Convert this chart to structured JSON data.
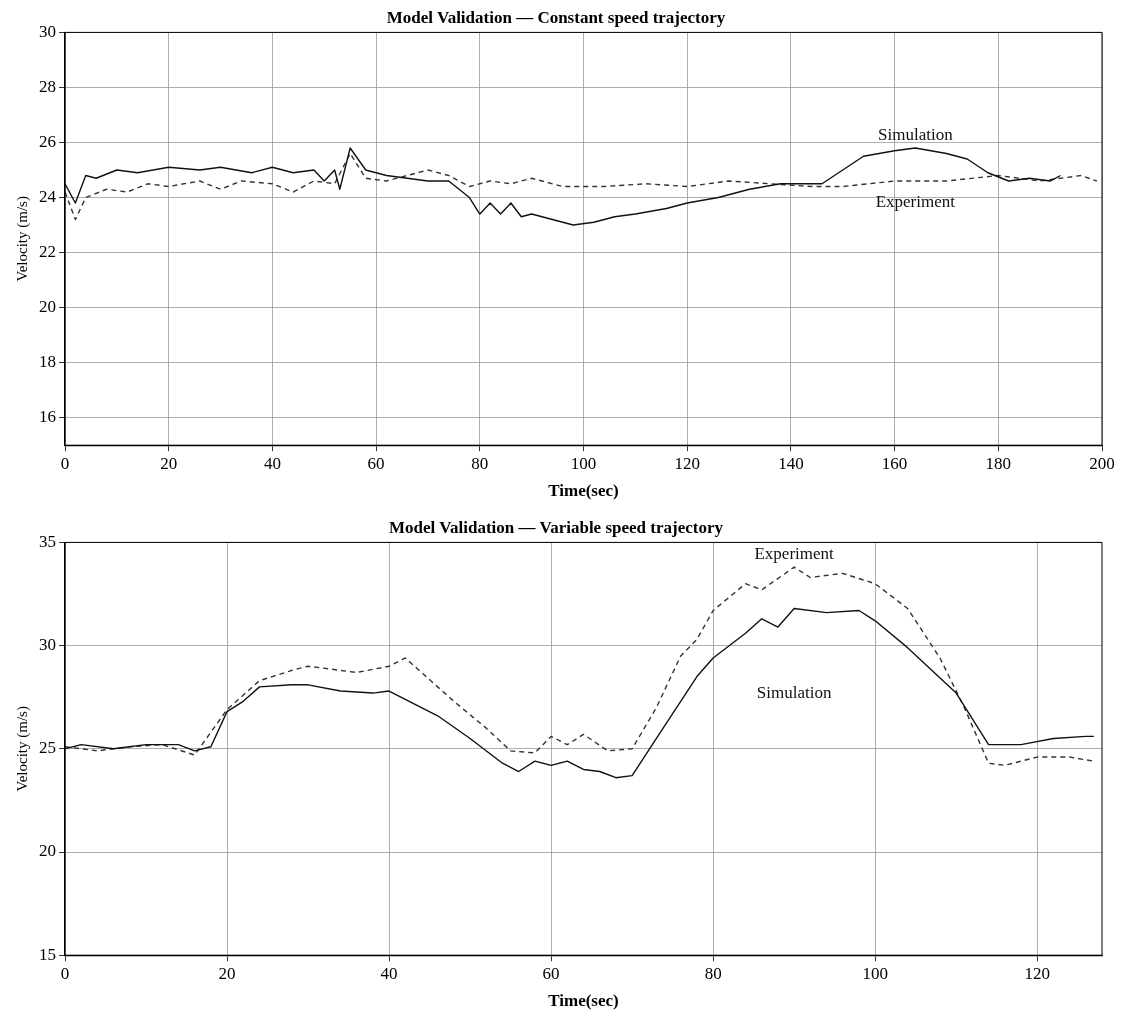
{
  "chart_data": [
    {
      "type": "line",
      "title": "Model Validation — Constant speed trajectory",
      "xlabel": "Time(sec)",
      "ylabel": "Velocity (m/s)",
      "xlim": [
        0,
        200
      ],
      "xticks": [
        0,
        20,
        40,
        60,
        80,
        100,
        120,
        140,
        160,
        180,
        200
      ],
      "ylim": [
        15,
        30
      ],
      "yticks": [
        16,
        18,
        20,
        22,
        24,
        26,
        28,
        30
      ],
      "grid": true,
      "legend": false,
      "marker": "none",
      "series": [
        {
          "name": "Simulation",
          "color": "#111111",
          "line_style": "solid",
          "x": [
            0,
            2,
            4,
            6,
            10,
            14,
            20,
            26,
            30,
            36,
            40,
            44,
            48,
            50,
            52,
            53,
            55,
            58,
            62,
            66,
            70,
            74,
            76,
            78,
            80,
            82,
            84,
            86,
            88,
            90,
            94,
            98,
            102,
            106,
            110,
            116,
            120,
            126,
            132,
            138,
            146,
            150,
            154,
            160,
            164,
            170,
            174,
            178,
            182,
            186,
            190,
            192
          ],
          "values": [
            24.5,
            23.8,
            24.8,
            24.7,
            25.0,
            24.9,
            25.1,
            25.0,
            25.1,
            24.9,
            25.1,
            24.9,
            25.0,
            24.6,
            25.0,
            24.3,
            25.8,
            25.0,
            24.8,
            24.7,
            24.6,
            24.6,
            24.3,
            24.0,
            23.4,
            23.8,
            23.4,
            23.8,
            23.3,
            23.4,
            23.2,
            23.0,
            23.1,
            23.3,
            23.4,
            23.6,
            23.8,
            24.0,
            24.3,
            24.5,
            24.5,
            25.0,
            25.5,
            25.7,
            25.8,
            25.6,
            25.4,
            24.9,
            24.6,
            24.7,
            24.6,
            24.8
          ]
        },
        {
          "name": "Experiment",
          "color": "#333333",
          "line_style": "dashed",
          "x": [
            0,
            2,
            4,
            8,
            12,
            16,
            20,
            26,
            30,
            34,
            40,
            44,
            48,
            52,
            55,
            58,
            62,
            66,
            70,
            74,
            78,
            82,
            86,
            90,
            96,
            104,
            112,
            120,
            128,
            136,
            144,
            150,
            160,
            170,
            180,
            188,
            196,
            199
          ],
          "values": [
            24.2,
            23.2,
            24.0,
            24.3,
            24.2,
            24.5,
            24.4,
            24.6,
            24.3,
            24.6,
            24.5,
            24.2,
            24.6,
            24.5,
            25.6,
            24.7,
            24.6,
            24.8,
            25.0,
            24.8,
            24.4,
            24.6,
            24.5,
            24.7,
            24.4,
            24.4,
            24.5,
            24.4,
            24.6,
            24.5,
            24.4,
            24.4,
            24.6,
            24.6,
            24.8,
            24.6,
            24.8,
            24.6
          ]
        }
      ]
    },
    {
      "type": "line",
      "title": "Model Validation — Variable speed trajectory",
      "xlabel": "Time(sec)",
      "ylabel": "Velocity (m/s)",
      "xlim": [
        0,
        128
      ],
      "xticks": [
        0,
        20,
        40,
        60,
        80,
        100,
        120
      ],
      "ylim": [
        15,
        35
      ],
      "yticks": [
        15,
        20,
        25,
        30,
        35
      ],
      "grid": true,
      "legend": false,
      "marker": "none",
      "series": [
        {
          "name": "Simulation",
          "color": "#111111",
          "line_style": "solid",
          "x": [
            0,
            2,
            6,
            10,
            14,
            16,
            18,
            20,
            22,
            24,
            28,
            30,
            34,
            38,
            40,
            44,
            46,
            50,
            54,
            56,
            58,
            60,
            62,
            64,
            66,
            68,
            70,
            73,
            78,
            80,
            84,
            86,
            88,
            90,
            94,
            98,
            100,
            104,
            110,
            114,
            118,
            122,
            126,
            127
          ],
          "values": [
            25.0,
            25.2,
            25.0,
            25.2,
            25.2,
            24.9,
            25.1,
            26.8,
            27.3,
            28.0,
            28.1,
            28.1,
            27.8,
            27.7,
            27.8,
            27.0,
            26.6,
            25.5,
            24.3,
            23.9,
            24.4,
            24.2,
            24.4,
            24.0,
            23.9,
            23.6,
            23.7,
            25.5,
            28.5,
            29.4,
            30.6,
            31.3,
            30.9,
            31.8,
            31.6,
            31.7,
            31.2,
            29.9,
            27.7,
            25.2,
            25.2,
            25.5,
            25.6,
            25.6
          ]
        },
        {
          "name": "Experiment",
          "color": "#333333",
          "line_style": "dashed",
          "x": [
            0,
            4,
            8,
            12,
            16,
            20,
            24,
            28,
            30,
            36,
            40,
            42,
            46,
            48,
            52,
            55,
            58,
            60,
            62,
            64,
            67,
            70,
            73,
            76,
            78,
            80,
            84,
            86,
            90,
            92,
            96,
            100,
            104,
            108,
            111,
            114,
            116,
            120,
            124,
            127
          ],
          "values": [
            25.1,
            24.9,
            25.1,
            25.2,
            24.7,
            26.9,
            28.3,
            28.8,
            29.0,
            28.7,
            29.0,
            29.4,
            28.0,
            27.3,
            26.0,
            24.9,
            24.8,
            25.6,
            25.2,
            25.7,
            24.9,
            25.0,
            27.0,
            29.5,
            30.3,
            31.7,
            33.0,
            32.7,
            33.8,
            33.3,
            33.5,
            33.0,
            31.8,
            29.4,
            27.0,
            24.3,
            24.2,
            24.6,
            24.6,
            24.4
          ]
        }
      ]
    }
  ]
}
